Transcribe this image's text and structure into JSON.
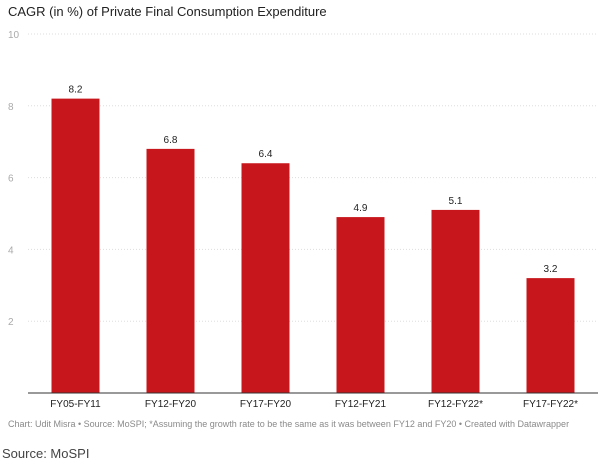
{
  "chart_data": {
    "type": "bar",
    "title": "CAGR (in %) of Private Final Consumption Expenditure",
    "categories": [
      "FY05-FY11",
      "FY12-FY20",
      "FY17-FY20",
      "FY12-FY21",
      "FY12-FY22*",
      "FY17-FY22*"
    ],
    "values": [
      8.2,
      6.8,
      6.4,
      4.9,
      5.1,
      3.2
    ],
    "value_labels": [
      "8.2",
      "6.8",
      "6.4",
      "4.9",
      "5.1",
      "3.2"
    ],
    "y_ticks": [
      2,
      4,
      6,
      8,
      10
    ],
    "ylim": [
      0,
      10
    ],
    "xlabel": "",
    "ylabel": "",
    "grid": true,
    "bar_color": "#c8171c"
  },
  "footnote": "Chart: Udit Misra • Source: MoSPI; *Assuming the growth rate to be the same as it was between FY12 and FY20 • Created with Datawrapper",
  "source_caption": "Source: MoSPI"
}
